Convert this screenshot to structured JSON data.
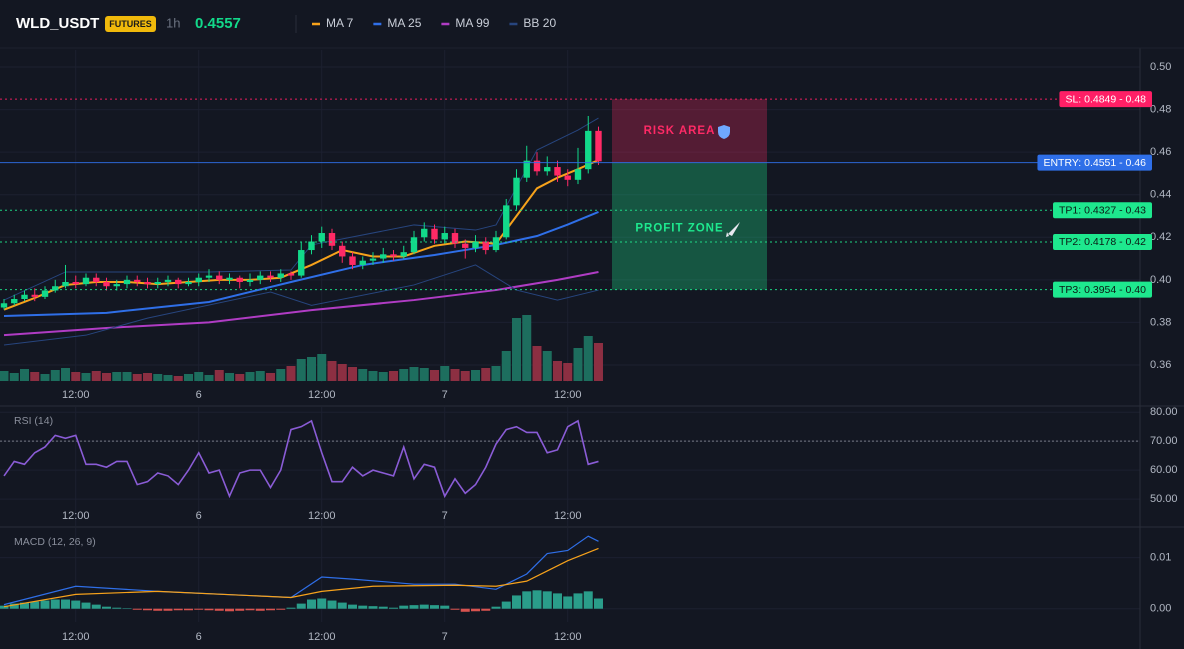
{
  "chart_data": [
    {
      "type": "candlestick",
      "symbol": "WLD_USDT",
      "badge": "FUTURES",
      "interval": "1h",
      "last_price": 0.4557,
      "last_price_label": "0.4557",
      "up_color": "#12d98a",
      "down_color": "#ff2a66",
      "volume_up_color": "#1d6e5e",
      "volume_down_color": "#8c2f42",
      "open": [
        0.387,
        0.389,
        0.391,
        0.393,
        0.392,
        0.395,
        0.397,
        0.399,
        0.398,
        0.401,
        0.399,
        0.397,
        0.398,
        0.4,
        0.399,
        0.398,
        0.399,
        0.4,
        0.398,
        0.399,
        0.401,
        0.402,
        0.4,
        0.401,
        0.399,
        0.4,
        0.402,
        0.401,
        0.403,
        0.402,
        0.414,
        0.418,
        0.422,
        0.416,
        0.411,
        0.407,
        0.409,
        0.41,
        0.412,
        0.411,
        0.413,
        0.42,
        0.424,
        0.419,
        0.422,
        0.417,
        0.415,
        0.418,
        0.414,
        0.42,
        0.435,
        0.448,
        0.456,
        0.451,
        0.453,
        0.449,
        0.447,
        0.452,
        0.47
      ],
      "high": [
        0.391,
        0.393,
        0.395,
        0.396,
        0.397,
        0.4,
        0.407,
        0.402,
        0.403,
        0.403,
        0.401,
        0.4,
        0.402,
        0.402,
        0.401,
        0.401,
        0.402,
        0.401,
        0.401,
        0.403,
        0.405,
        0.404,
        0.403,
        0.402,
        0.403,
        0.404,
        0.404,
        0.405,
        0.404,
        0.418,
        0.421,
        0.425,
        0.424,
        0.418,
        0.413,
        0.411,
        0.413,
        0.415,
        0.414,
        0.416,
        0.423,
        0.427,
        0.426,
        0.425,
        0.424,
        0.419,
        0.421,
        0.42,
        0.423,
        0.438,
        0.452,
        0.463,
        0.46,
        0.458,
        0.456,
        0.452,
        0.462,
        0.477,
        0.472
      ],
      "low": [
        0.386,
        0.388,
        0.39,
        0.39,
        0.391,
        0.394,
        0.396,
        0.396,
        0.397,
        0.397,
        0.395,
        0.395,
        0.396,
        0.397,
        0.396,
        0.396,
        0.397,
        0.396,
        0.397,
        0.397,
        0.399,
        0.398,
        0.398,
        0.396,
        0.397,
        0.398,
        0.399,
        0.399,
        0.4,
        0.401,
        0.412,
        0.415,
        0.414,
        0.408,
        0.405,
        0.405,
        0.407,
        0.408,
        0.409,
        0.41,
        0.412,
        0.418,
        0.417,
        0.417,
        0.415,
        0.41,
        0.413,
        0.412,
        0.413,
        0.419,
        0.433,
        0.446,
        0.449,
        0.449,
        0.446,
        0.444,
        0.445,
        0.45,
        0.454
      ],
      "close": [
        0.389,
        0.391,
        0.393,
        0.392,
        0.395,
        0.397,
        0.399,
        0.398,
        0.401,
        0.399,
        0.397,
        0.398,
        0.4,
        0.399,
        0.398,
        0.399,
        0.4,
        0.398,
        0.399,
        0.401,
        0.402,
        0.4,
        0.401,
        0.399,
        0.4,
        0.402,
        0.401,
        0.403,
        0.402,
        0.414,
        0.418,
        0.422,
        0.416,
        0.411,
        0.407,
        0.409,
        0.41,
        0.412,
        0.411,
        0.413,
        0.42,
        0.424,
        0.419,
        0.422,
        0.417,
        0.415,
        0.418,
        0.414,
        0.42,
        0.435,
        0.448,
        0.456,
        0.451,
        0.453,
        0.449,
        0.447,
        0.452,
        0.47,
        0.4557
      ],
      "volume": [
        10,
        8,
        12,
        9,
        7,
        11,
        13,
        9,
        8,
        10,
        8,
        9,
        9,
        7,
        8,
        7,
        6,
        5,
        7,
        9,
        6,
        11,
        8,
        7,
        9,
        10,
        8,
        12,
        15,
        22,
        24,
        27,
        20,
        17,
        14,
        12,
        10,
        9,
        10,
        12,
        14,
        13,
        11,
        15,
        12,
        10,
        11,
        13,
        15,
        30,
        63,
        66,
        35,
        30,
        20,
        18,
        33,
        45,
        38
      ],
      "volume_lim": [
        0,
        70
      ],
      "overlays": [
        {
          "name": "MA 7",
          "color": "#f7a21b",
          "x": [
            0,
            3,
            6,
            9,
            12,
            15,
            18,
            21,
            24,
            27,
            30,
            33,
            36,
            39,
            42,
            45,
            48,
            50,
            52,
            54,
            56,
            58
          ],
          "values": [
            0.386,
            0.3915,
            0.3976,
            0.399,
            0.399,
            0.398,
            0.399,
            0.4,
            0.4,
            0.401,
            0.407,
            0.414,
            0.411,
            0.411,
            0.416,
            0.418,
            0.417,
            0.43,
            0.443,
            0.448,
            0.452,
            0.4563
          ]
        },
        {
          "name": "MA 25",
          "color": "#2f6fe8",
          "x": [
            0,
            10,
            20,
            28,
            35,
            42,
            48,
            52,
            55,
            58
          ],
          "values": [
            0.383,
            0.3845,
            0.3896,
            0.399,
            0.407,
            0.4117,
            0.4164,
            0.4206,
            0.426,
            0.4319
          ]
        },
        {
          "name": "MA 99",
          "color": "#b03cc4",
          "x": [
            0,
            10,
            20,
            30,
            40,
            48,
            54,
            58
          ],
          "values": [
            0.374,
            0.3774,
            0.38,
            0.3858,
            0.3905,
            0.3952,
            0.4,
            0.4037
          ]
        },
        {
          "name": "BB 20",
          "color": "#27457e",
          "x": [
            0,
            6,
            20,
            28,
            30,
            40,
            46,
            48,
            52,
            56,
            58
          ],
          "values": [
            0.3905,
            0.4037,
            0.4037,
            0.4046,
            0.4164,
            0.4258,
            0.4234,
            0.4258,
            0.461,
            0.4704,
            0.476
          ]
        },
        {
          "color": "#27457e",
          "x": [
            0,
            8,
            14,
            26,
            30,
            40,
            46,
            50,
            54,
            58
          ],
          "values": [
            0.3694,
            0.374,
            0.382,
            0.3943,
            0.388,
            0.3976,
            0.407,
            0.3952,
            0.3905,
            0.3952
          ]
        }
      ],
      "levels": [
        {
          "label": "SL: 0.4849 - 0.48",
          "value": 0.4849,
          "color": "#ff1f66",
          "style": "dotted"
        },
        {
          "label": "ENTRY: 0.4551 - 0.46",
          "value": 0.4551,
          "color": "#2f6fe8",
          "style": "solid"
        },
        {
          "label": "TP1: 0.4327 - 0.43",
          "value": 0.4327,
          "color": "#1ee88e",
          "style": "dotted"
        },
        {
          "label": "TP2: 0.4178 - 0.42",
          "value": 0.4178,
          "color": "#1ee88e",
          "style": "dotted"
        },
        {
          "label": "TP3: 0.3954 - 0.40",
          "value": 0.3954,
          "color": "#1ee88e",
          "style": "dotted"
        }
      ],
      "zones": [
        {
          "label": "RISK AREA",
          "from": 0.4551,
          "to": 0.4849,
          "color": "#ff2a66"
        },
        {
          "label": "PROFIT ZONE",
          "from": 0.3954,
          "to": 0.4551,
          "color": "#1ee88e"
        }
      ],
      "xlim": [
        -0.39,
        110.83
      ],
      "xticks": [
        {
          "value": 7,
          "label": "12:00"
        },
        {
          "value": 19,
          "label": "6"
        },
        {
          "value": 31,
          "label": "12:00"
        },
        {
          "value": 43,
          "label": "7"
        },
        {
          "value": 55,
          "label": "12:00"
        }
      ],
      "ylim": [
        0.352,
        0.508
      ],
      "yticks": [
        {
          "value": 0.5,
          "label": "0.50"
        },
        {
          "value": 0.48,
          "label": "0.48"
        },
        {
          "value": 0.46,
          "label": "0.46"
        },
        {
          "value": 0.44,
          "label": "0.44"
        },
        {
          "value": 0.42,
          "label": "0.42"
        },
        {
          "value": 0.4,
          "label": "0.40"
        },
        {
          "value": 0.38,
          "label": "0.38"
        },
        {
          "value": 0.36,
          "label": "0.36"
        }
      ],
      "grid": true
    },
    {
      "type": "line",
      "title": "RSI (14)",
      "color": "#8a5cd6",
      "values": [
        58,
        63,
        62,
        66,
        68,
        72,
        71,
        72,
        62,
        62,
        61,
        63,
        63,
        55,
        56,
        59,
        58,
        55,
        60,
        66,
        59,
        60,
        51,
        59,
        60,
        60,
        54,
        60,
        74,
        75,
        77,
        66,
        56,
        56,
        61,
        58,
        60,
        59,
        58,
        68,
        57,
        62,
        61,
        51,
        57,
        52,
        55,
        61,
        69,
        74,
        75,
        73,
        73,
        66,
        67,
        75,
        77,
        62,
        63
      ],
      "guide": 70,
      "ylim": [
        40.7,
        81.8
      ],
      "yticks": [
        {
          "value": 80,
          "label": "80.00"
        },
        {
          "value": 70,
          "label": "70.00"
        },
        {
          "value": 60,
          "label": "60.00"
        },
        {
          "value": 50,
          "label": "50.00"
        }
      ]
    },
    {
      "type": "macd",
      "title": "MACD (12, 26, 9)",
      "macd": {
        "color": "#2f6fe8",
        "x": [
          0,
          7,
          15,
          28,
          31,
          34,
          40,
          44,
          48,
          51,
          53,
          55,
          57,
          58
        ],
        "values": [
          0.0008,
          0.0044,
          0.0034,
          0.0022,
          0.0062,
          0.0058,
          0.0048,
          0.0048,
          0.0038,
          0.0068,
          0.0108,
          0.0114,
          0.0142,
          0.0132
        ]
      },
      "signal": {
        "color": "#f7a21b",
        "x": [
          0,
          7,
          15,
          28,
          31,
          36,
          44,
          48,
          51,
          53,
          55,
          58
        ],
        "values": [
          0.0004,
          0.0028,
          0.0034,
          0.0022,
          0.0034,
          0.0044,
          0.0046,
          0.0044,
          0.0054,
          0.0074,
          0.0094,
          0.0118
        ]
      },
      "histogram": [
        0.0006,
        0.001,
        0.0012,
        0.0014,
        0.0016,
        0.0018,
        0.0018,
        0.0016,
        0.0012,
        0.0008,
        0.0004,
        0.0002,
        0.0001,
        -0.0002,
        -0.0003,
        -0.0004,
        -0.0004,
        -0.0003,
        -0.0003,
        -0.0002,
        -0.0003,
        -0.0004,
        -0.0005,
        -0.0004,
        -0.0003,
        -0.0004,
        -0.0003,
        -0.0002,
        0.0002,
        0.001,
        0.0018,
        0.002,
        0.0016,
        0.0012,
        0.0008,
        0.0006,
        0.0005,
        0.0004,
        0.0002,
        0.0006,
        0.0007,
        0.0008,
        0.0007,
        0.0006,
        -0.0002,
        -0.0006,
        -0.0005,
        -0.0004,
        0.0004,
        0.0014,
        0.0026,
        0.0034,
        0.0036,
        0.0034,
        0.003,
        0.0024,
        0.003,
        0.0034,
        0.002
      ],
      "positive_color": "#2a9d8a",
      "negative_color": "#d9534f",
      "ylim": [
        -0.0026,
        0.0158
      ],
      "yticks": [
        {
          "value": 0.01,
          "label": "0.01"
        },
        {
          "value": 0,
          "label": "0.00"
        }
      ]
    }
  ]
}
